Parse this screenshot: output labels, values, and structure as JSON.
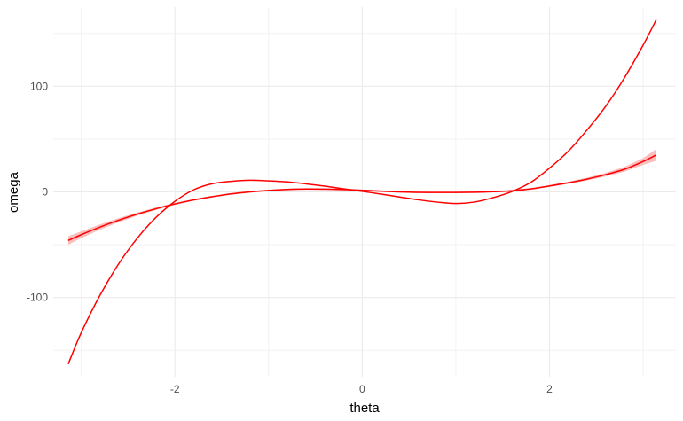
{
  "chart_data": {
    "type": "line",
    "xlabel": "theta",
    "ylabel": "omega",
    "xlim": [
      -3.3,
      3.35
    ],
    "ylim": [
      -175,
      175
    ],
    "x_ticks": [
      -2,
      0,
      2
    ],
    "x_tick_labels": [
      "-2",
      "0",
      "2"
    ],
    "y_ticks": [
      -100,
      0,
      100
    ],
    "y_tick_labels": [
      "-100",
      "0",
      "100"
    ],
    "grid": true,
    "legend": "none",
    "series": [
      {
        "color": "#ff0000",
        "band_color": "#f8b4b4",
        "x": [
          -3.14,
          -3.0,
          -2.8,
          -2.6,
          -2.4,
          -2.2,
          -2.0,
          -1.8,
          -1.6,
          -1.4,
          -1.2,
          -1.0,
          -0.8,
          -0.6,
          -0.4,
          -0.2,
          0.0,
          0.2,
          0.4,
          0.6,
          0.8,
          1.0,
          1.2,
          1.4,
          1.6,
          1.8,
          2.0,
          2.2,
          2.4,
          2.6,
          2.8,
          3.0,
          3.14
        ],
        "values": [
          -46.0,
          -40.5,
          -33.3,
          -26.8,
          -21.0,
          -15.9,
          -11.4,
          -7.6,
          -4.5,
          -1.9,
          0.0,
          1.4,
          2.3,
          2.7,
          2.6,
          2.2,
          1.5,
          0.7,
          0.0,
          -0.4,
          -0.5,
          -0.5,
          -0.3,
          0.2,
          1.1,
          2.8,
          5.6,
          8.6,
          12.1,
          16.3,
          21.4,
          28.8,
          35.0
        ],
        "band_halfwidth": [
          4.0,
          3.2,
          2.5,
          2.0,
          1.5,
          1.2,
          1.0,
          0.9,
          0.8,
          0.8,
          0.8,
          0.8,
          0.8,
          0.8,
          0.8,
          0.8,
          0.8,
          0.8,
          0.8,
          0.8,
          0.8,
          0.8,
          0.8,
          0.8,
          0.8,
          0.8,
          0.9,
          1.0,
          1.3,
          1.7,
          2.3,
          3.2,
          5.5
        ]
      },
      {
        "color": "#ff0000",
        "x": [
          -3.14,
          -3.0,
          -2.8,
          -2.6,
          -2.4,
          -2.2,
          -2.0,
          -1.8,
          -1.6,
          -1.4,
          -1.2,
          -1.0,
          -0.8,
          -0.6,
          -0.4,
          -0.2,
          0.0,
          0.2,
          0.4,
          0.6,
          0.8,
          1.0,
          1.2,
          1.4,
          1.6,
          1.8,
          2.0,
          2.2,
          2.4,
          2.6,
          2.8,
          3.0,
          3.14
        ],
        "values": [
          -163.0,
          -133.2,
          -97.8,
          -68.0,
          -43.6,
          -24.0,
          -8.9,
          2.0,
          7.8,
          10.0,
          11.0,
          10.4,
          9.4,
          7.6,
          5.5,
          2.9,
          0.5,
          -2.1,
          -4.8,
          -7.5,
          -9.7,
          -11.0,
          -9.6,
          -5.4,
          0.4,
          9.0,
          22.5,
          38.5,
          58.5,
          81.0,
          108.0,
          139.0,
          163.0
        ]
      }
    ]
  }
}
